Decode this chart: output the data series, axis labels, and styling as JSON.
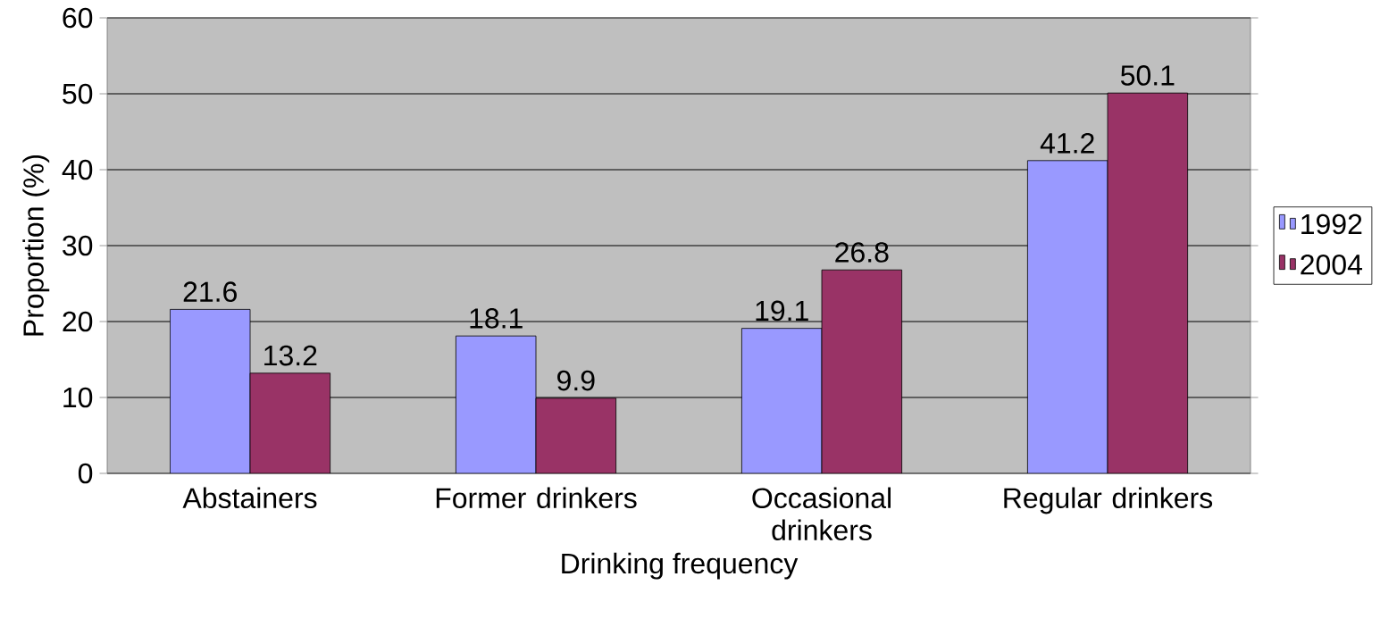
{
  "chart_data": {
    "type": "bar",
    "xlabel": "Drinking frequency",
    "ylabel": "Proportion (%)",
    "categories": [
      "Abstainers",
      "Former drinkers",
      "Occasional drinkers",
      "Regular drinkers"
    ],
    "series": [
      {
        "name": "1992",
        "color": "#9999ff",
        "values": [
          21.6,
          18.1,
          19.1,
          41.2
        ]
      },
      {
        "name": "2004",
        "color": "#993366",
        "values": [
          13.2,
          9.9,
          26.8,
          50.1
        ]
      }
    ],
    "ylim": [
      0,
      60
    ],
    "yticks": [
      0,
      10,
      20,
      30,
      40,
      50,
      60
    ],
    "grid": "y",
    "legend": "right",
    "data_labels": true
  }
}
